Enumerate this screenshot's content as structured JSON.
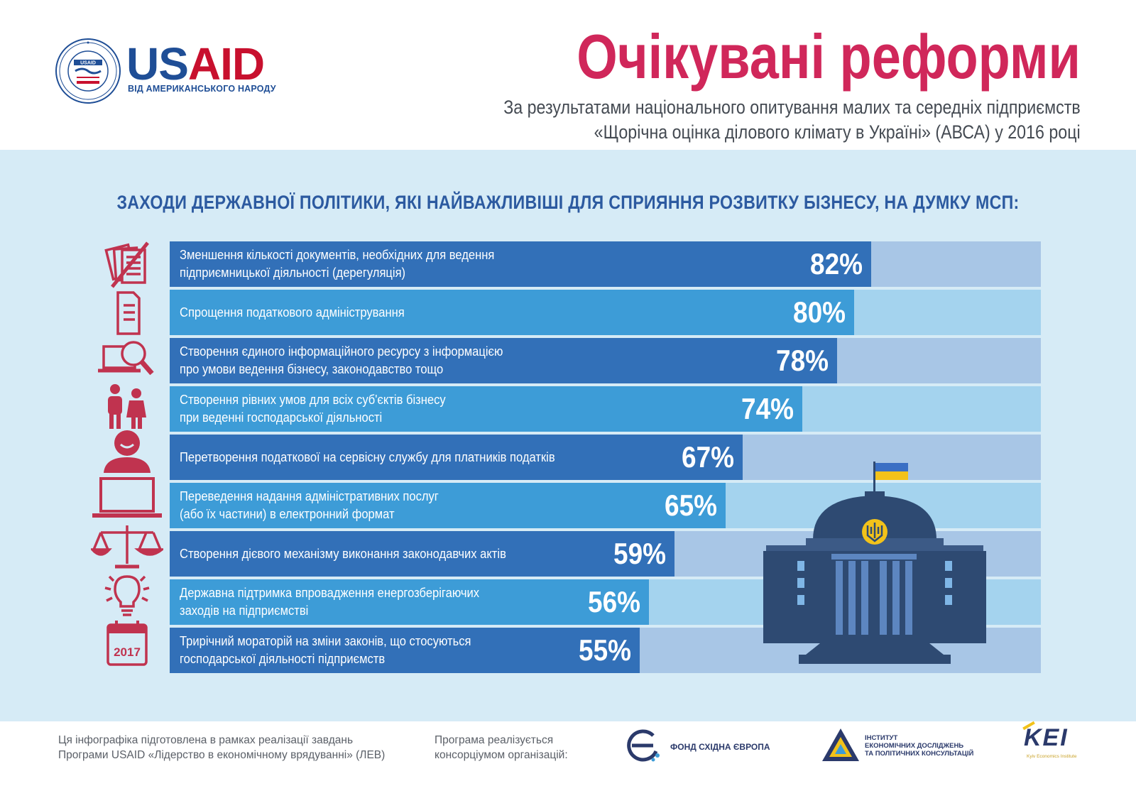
{
  "header": {
    "logo_us": "US",
    "logo_aid": "AID",
    "logo_tagline": "ВІД АМЕРИКАНСЬКОГО НАРОДУ",
    "seal_text": "USAID",
    "title": "Очікувані реформи",
    "subtitle_line1": "За результатами національного опитування малих та середніх підприємств",
    "subtitle_line2": "«Щорічна оцінка ділового клімату в Україні» (АВСА) у 2016 році"
  },
  "chart_data": {
    "type": "bar",
    "orientation": "horizontal",
    "title": "ЗАХОДИ ДЕРЖАВНОЇ ПОЛІТИКИ, ЯКІ НАЙВАЖЛИВІШІ ДЛЯ СПРИЯННЯ РОЗВИТКУ БІЗНЕСУ, НА ДУМКУ МСП:",
    "xlim": [
      0,
      100
    ],
    "unit": "%",
    "grid": false,
    "colors": {
      "dark_bar": "#3270b8",
      "light_bar": "#3d9cd7",
      "dark_track": "#a8c6e6",
      "light_track": "#a4d3ee"
    },
    "categories": [
      "Зменшення кількості документів, необхідних для ведення\nпідприємницької діяльності (дерегуляція)",
      "Спрощення податкового адміністрування",
      "Створення єдиного інформаційного ресурсу з інформацією\nпро умови ведення бізнесу, законодавство тощо",
      "Створення рівних умов для всіх суб'єктів бізнесу\nпри веденні господарської діяльності",
      "Перетворення податкової на сервісну службу для платників податків",
      "Переведення надання адміністративних послуг\n(або їх частини) в електронний формат",
      "Створення дієвого механізму виконання законодавчих актів",
      "Державна підтримка впровадження енергозберігаючих\nзаходів на підприємстві",
      "Трирічний мораторій на зміни законів, що стосуються\nгосподарської діяльності підприємств"
    ],
    "values": [
      82,
      80,
      78,
      74,
      67,
      65,
      59,
      56,
      55
    ],
    "value_labels": [
      "82%",
      "80%",
      "78%",
      "74%",
      "67%",
      "65%",
      "59%",
      "56%",
      "55%"
    ],
    "icons": [
      "documents-crossed-icon",
      "tax-form-icon",
      "laptop-search-icon",
      "equal-people-icon",
      "service-person-icon",
      "laptop-icon",
      "scales-icon",
      "lightbulb-icon",
      "calendar-icon"
    ],
    "calendar_icon_text": "2017"
  },
  "footer": {
    "left_text": "Ця інфографіка підготовлена в рамках реалізації завдань\nПрограми USAID «Лідерство в економічному врядуванні» (ЛЕВ)",
    "mid_text": "Програма реалізується\nконсорціумом організацій:",
    "partner1": "ФОНД СХІДНА ЄВРОПА",
    "partner2": "ІНСТИТУТ\nЕКОНОМІЧНИХ ДОСЛІДЖЕНЬ\nТА ПОЛІТИЧНИХ КОНСУЛЬТАЦІЙ",
    "partner3": "KEI",
    "partner3_sub": "Kyiv Economics Institute"
  },
  "brand_colors": {
    "title": "#d0275a",
    "icon": "#c0334f",
    "heading": "#2c5aa0",
    "building": "#2e4a72"
  }
}
